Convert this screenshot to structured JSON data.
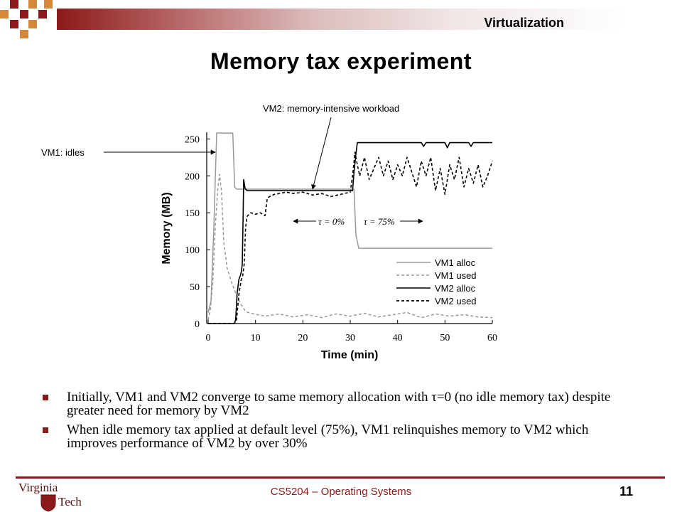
{
  "header": {
    "section": "Virtualization",
    "title": "Memory tax experiment"
  },
  "chart_data": {
    "type": "line",
    "xlabel": "Time (min)",
    "ylabel": "Memory (MB)",
    "xlim": [
      0,
      60
    ],
    "ylim": [
      0,
      260
    ],
    "xticks": [
      0,
      10,
      20,
      30,
      40,
      50,
      60
    ],
    "yticks": [
      0,
      50,
      100,
      150,
      200,
      250
    ],
    "grid": false,
    "legend_position": "bottom-right",
    "series": [
      {
        "name": "VM1 alloc",
        "style": "solid",
        "color": "#999999",
        "x": [
          0,
          0.6,
          1.2,
          1.8,
          5.2,
          5.6,
          6.0,
          30.8,
          31.2,
          31.8,
          60
        ],
        "y": [
          15,
          30,
          130,
          258,
          258,
          185,
          182,
          182,
          120,
          102,
          102
        ]
      },
      {
        "name": "VM1 used",
        "style": "dashed",
        "color": "#999999",
        "x": [
          0,
          0.5,
          1.0,
          1.5,
          2.0,
          2.4,
          2.8,
          3.3,
          4.0,
          5.0,
          6.0,
          7.0,
          8.0,
          9.0,
          12,
          15,
          18,
          21,
          24,
          27,
          30,
          33,
          36,
          39,
          42,
          45,
          48,
          51,
          54,
          57,
          60
        ],
        "y": [
          5,
          20,
          60,
          130,
          180,
          202,
          180,
          110,
          75,
          55,
          38,
          25,
          16,
          14,
          10,
          13,
          9,
          12,
          8,
          13,
          10,
          14,
          9,
          12,
          15,
          8,
          13,
          10,
          12,
          9,
          8
        ]
      },
      {
        "name": "VM2 alloc",
        "style": "solid",
        "color": "#000000",
        "x": [
          0,
          5.5,
          5.8,
          6.1,
          6.5,
          6.8,
          7.0,
          7.2,
          7.4,
          7.5,
          7.8,
          8.2,
          8.8,
          30.5,
          30.8,
          31.2,
          31.5,
          45,
          45.5,
          46,
          50,
          50.5,
          51,
          55,
          55.5,
          56,
          60
        ],
        "y": [
          0,
          0,
          5,
          40,
          60,
          65,
          70,
          80,
          150,
          195,
          183,
          180,
          180,
          180,
          205,
          230,
          245,
          245,
          240,
          245,
          245,
          238,
          245,
          245,
          240,
          245,
          245
        ]
      },
      {
        "name": "VM2 used",
        "style": "dashed",
        "color": "#000000",
        "x": [
          0,
          5.5,
          6.0,
          6.5,
          7.0,
          7.3,
          7.6,
          7.9,
          8.2,
          9.0,
          10.0,
          11.0,
          12.0,
          12.5,
          13.0,
          14.0,
          15.0,
          16.5,
          18,
          20,
          22,
          24,
          26,
          28,
          30,
          30.5,
          31,
          31.5,
          32,
          33,
          34,
          35,
          36,
          37,
          38,
          39,
          40,
          41,
          42,
          43,
          44,
          45,
          46,
          47,
          48,
          49,
          50,
          51,
          52,
          53,
          54,
          55,
          56,
          57,
          58,
          59,
          60
        ],
        "y": [
          0,
          0,
          5,
          40,
          60,
          65,
          80,
          130,
          145,
          150,
          148,
          150,
          146,
          170,
          172,
          175,
          176,
          178,
          176,
          178,
          174,
          176,
          172,
          175,
          178,
          200,
          232,
          215,
          200,
          225,
          195,
          210,
          225,
          200,
          220,
          195,
          215,
          200,
          225,
          205,
          185,
          220,
          200,
          225,
          180,
          210,
          175,
          215,
          195,
          225,
          185,
          210,
          190,
          215,
          185,
          200,
          220
        ]
      }
    ],
    "annotations": [
      "VM1: idles",
      "VM2: memory-intensive workload",
      "τ = 0%",
      "τ = 75%"
    ]
  },
  "bullets": [
    "Initially, VM1 and VM2 converge to same memory allocation with τ=0 (no idle memory tax) despite greater need for memory by VM2",
    "When idle memory tax applied at default level (75%), VM1 relinquishes memory to VM2 which improves performance of VM2 by over 30%"
  ],
  "footer": {
    "course": "CS5204 – Operating Systems",
    "page": "11",
    "logo_text": "Virginia Tech"
  },
  "colors": {
    "maroon": "#8b1a1a",
    "orange": "#d4893a"
  }
}
